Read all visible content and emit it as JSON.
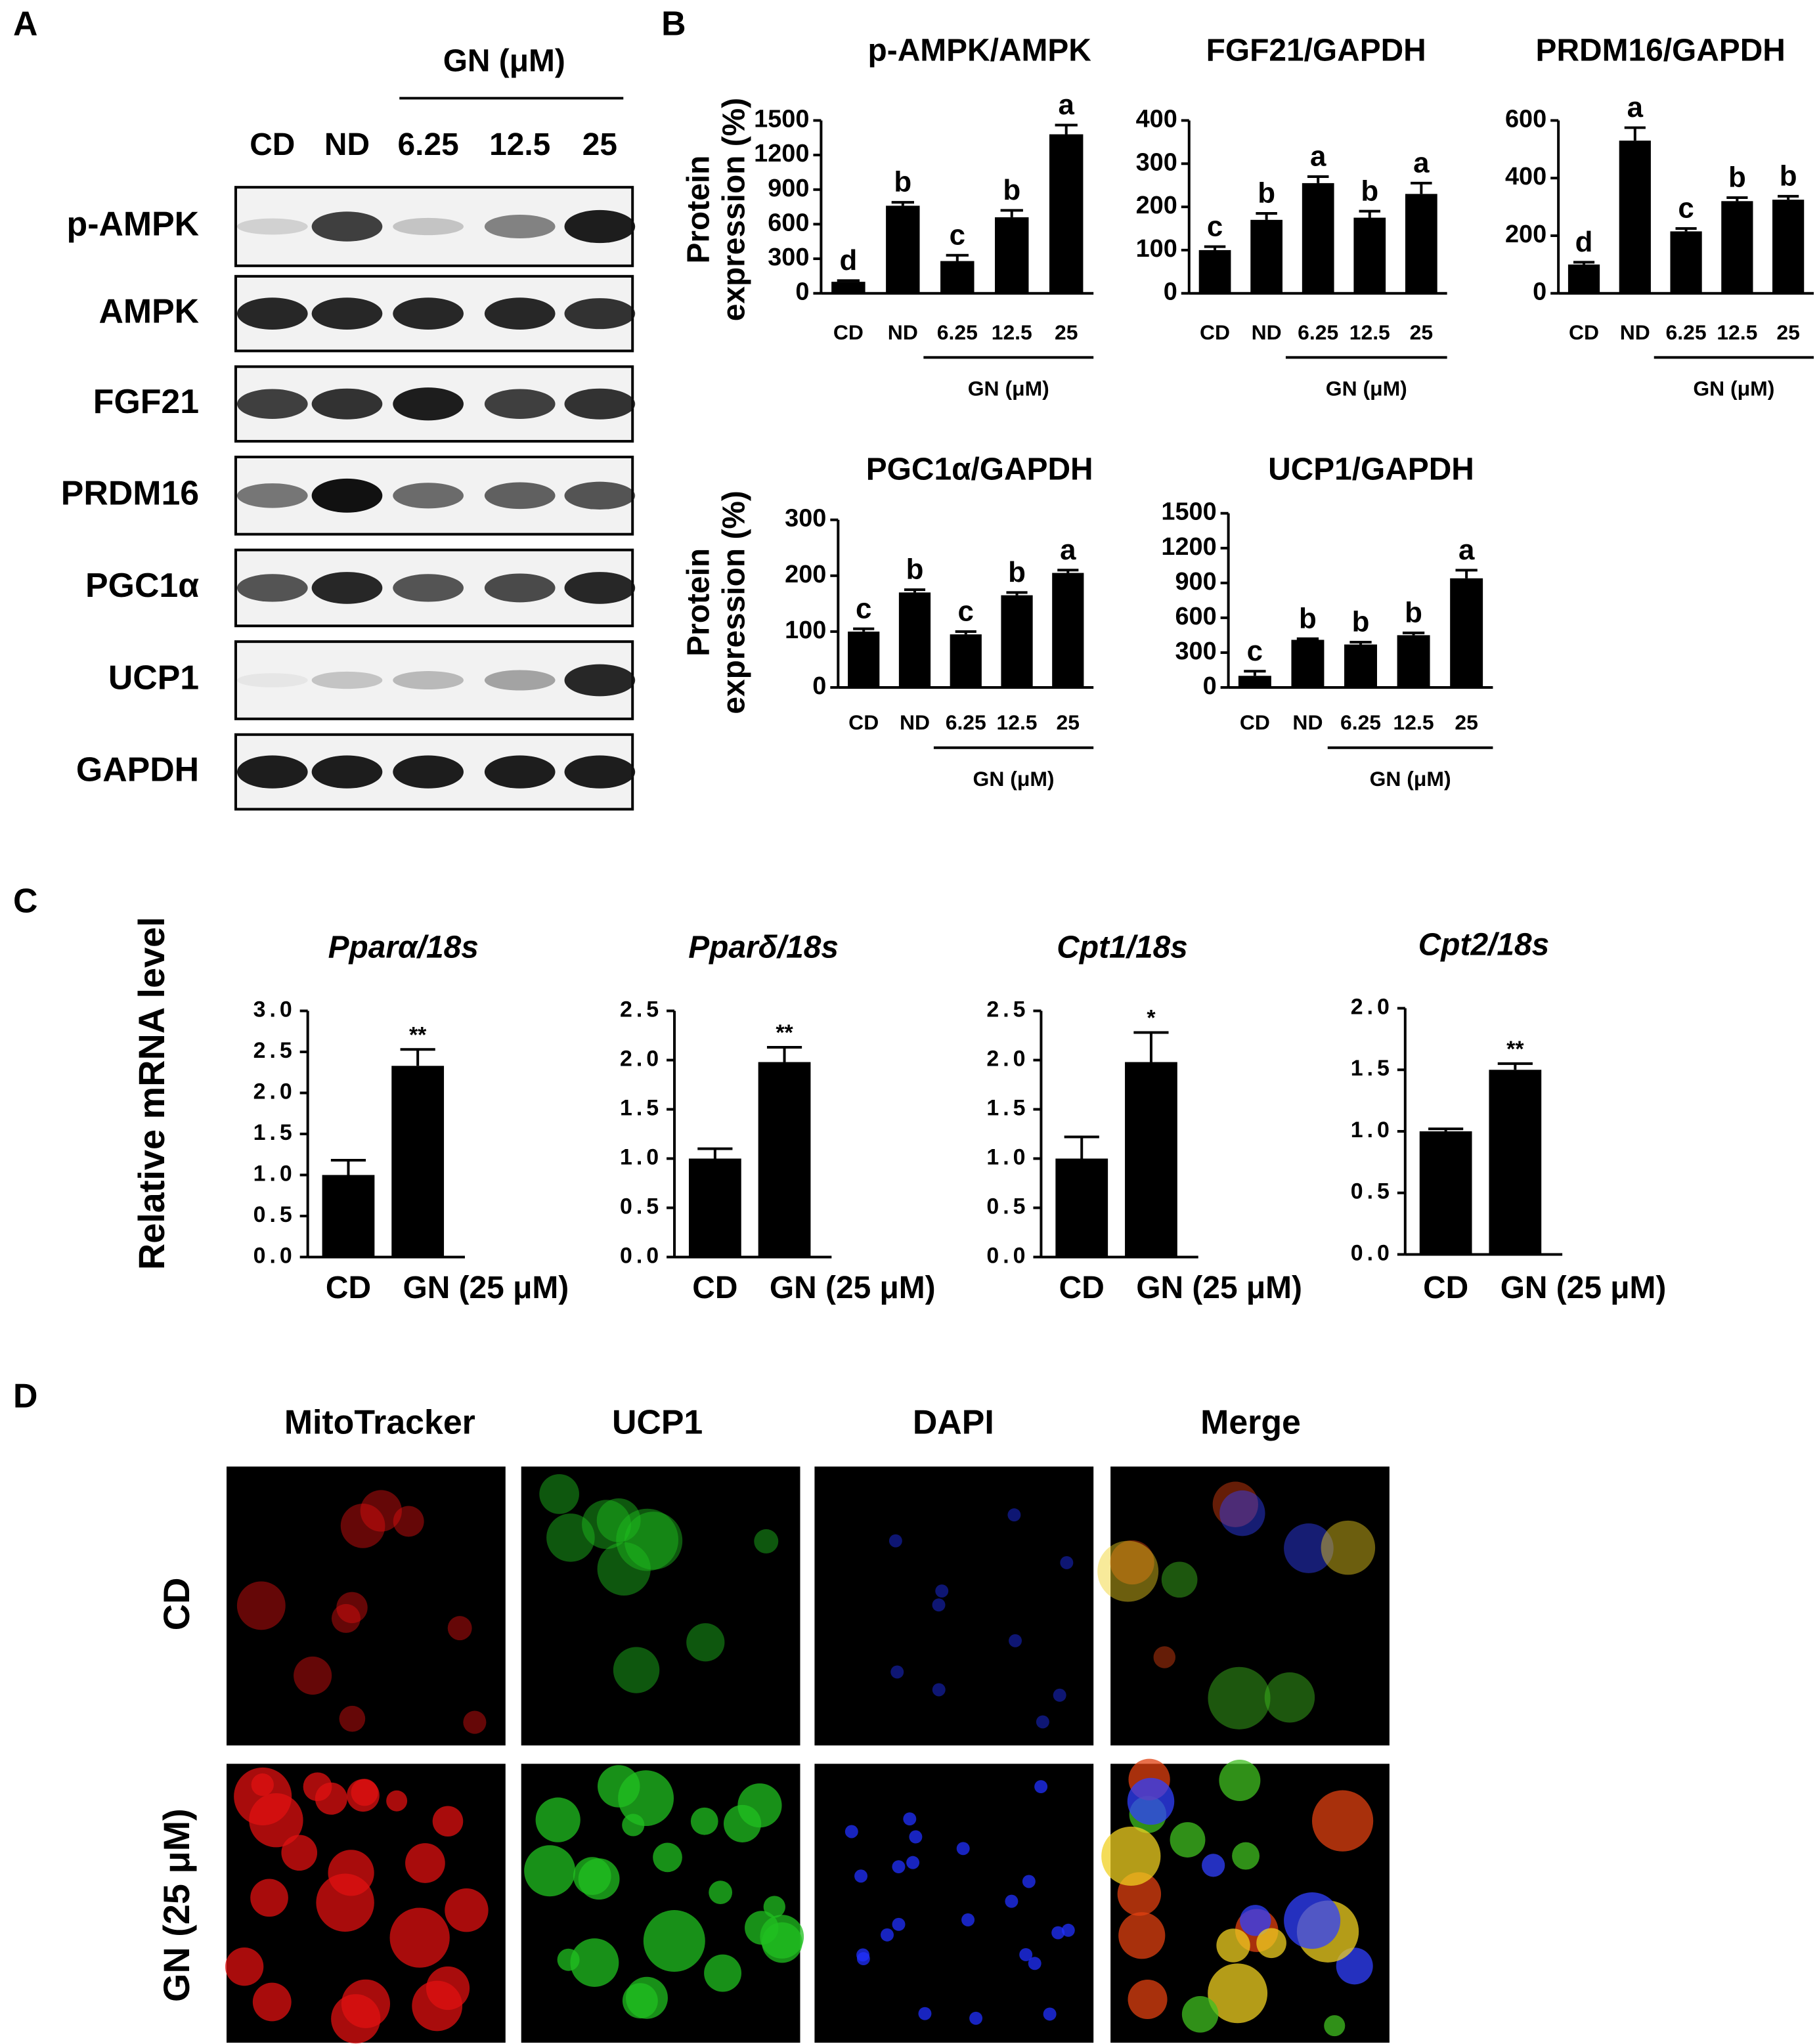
{
  "panel_labels": [
    "A",
    "B",
    "C",
    "D"
  ],
  "western_blot": {
    "group_label": "GN (μM)",
    "lanes": [
      "CD",
      "ND",
      "6.25",
      "12.5",
      "25"
    ],
    "proteins": [
      "p-AMPK",
      "AMPK",
      "FGF21",
      "PRDM16",
      "PGC1α",
      "UCP1",
      "GAPDH"
    ]
  },
  "chart_data": [
    {
      "type": "bar",
      "title": "p-AMPK/AMPK",
      "ylabel": [
        "Protein",
        "expression (%)"
      ],
      "categories": [
        "CD",
        "ND",
        "6.25",
        "12.5",
        "25"
      ],
      "group_label": "GN (μM)",
      "color": "#000000",
      "values": [
        100,
        760,
        280,
        660,
        1380
      ],
      "errors": [
        10,
        30,
        50,
        60,
        80
      ],
      "annotations": [
        "d",
        "b",
        "c",
        "b",
        "a"
      ],
      "ylim": [
        0,
        1500
      ],
      "yticks": [
        0,
        300,
        600,
        900,
        1200,
        1500
      ]
    },
    {
      "type": "bar",
      "title": "FGF21/GAPDH",
      "categories": [
        "CD",
        "ND",
        "6.25",
        "12.5",
        "25"
      ],
      "group_label": "GN (μM)",
      "color": "#000000",
      "values": [
        100,
        170,
        255,
        175,
        230
      ],
      "errors": [
        8,
        15,
        15,
        15,
        25
      ],
      "annotations": [
        "c",
        "b",
        "a",
        "b",
        "a"
      ],
      "ylim": [
        0,
        400
      ],
      "yticks": [
        0,
        100,
        200,
        300,
        400
      ]
    },
    {
      "type": "bar",
      "title": "PRDM16/GAPDH",
      "categories": [
        "CD",
        "ND",
        "6.25",
        "12.5",
        "25"
      ],
      "group_label": "GN (μM)",
      "color": "#000000",
      "values": [
        100,
        530,
        215,
        320,
        325
      ],
      "errors": [
        8,
        45,
        10,
        12,
        12
      ],
      "annotations": [
        "d",
        "a",
        "c",
        "b",
        "b"
      ],
      "ylim": [
        0,
        600
      ],
      "yticks": [
        0,
        200,
        400,
        600
      ]
    },
    {
      "type": "bar",
      "title": "PGC1α/GAPDH",
      "ylabel": [
        "Protein",
        "expression (%)"
      ],
      "categories": [
        "CD",
        "ND",
        "6.25",
        "12.5",
        "25"
      ],
      "group_label": "GN (μM)",
      "color": "#000000",
      "values": [
        100,
        170,
        95,
        165,
        205
      ],
      "errors": [
        5,
        5,
        5,
        5,
        5
      ],
      "annotations": [
        "c",
        "b",
        "c",
        "b",
        "a"
      ],
      "ylim": [
        0,
        300
      ],
      "yticks": [
        0,
        100,
        200,
        300
      ]
    },
    {
      "type": "bar",
      "title": "UCP1/GAPDH",
      "categories": [
        "CD",
        "ND",
        "6.25",
        "12.5",
        "25"
      ],
      "group_label": "GN (μM)",
      "color": "#000000",
      "values": [
        100,
        410,
        370,
        450,
        940
      ],
      "errors": [
        40,
        10,
        20,
        20,
        70
      ],
      "annotations": [
        "c",
        "b",
        "b",
        "b",
        "a"
      ],
      "ylim": [
        0,
        1500
      ],
      "yticks": [
        0,
        300,
        600,
        900,
        1200,
        1500
      ]
    },
    {
      "type": "bar",
      "title": "Pparα/18s",
      "ylabel": "Relative mRNA level",
      "categories": [
        "CD",
        "GN (25 μM)"
      ],
      "color": "#000000",
      "values": [
        1.0,
        2.33
      ],
      "errors": [
        0.18,
        0.2
      ],
      "annotations": [
        null,
        "**"
      ],
      "ylim": [
        0,
        3
      ],
      "yticks": [
        {
          "value": 0,
          "label": "0.0"
        },
        0.5,
        {
          "value": 1,
          "label": "1.0"
        },
        1.5,
        {
          "value": 2,
          "label": "2.0"
        },
        2.5,
        {
          "value": 3,
          "label": "3.0"
        }
      ]
    },
    {
      "type": "bar",
      "title": "Pparδ/18s",
      "categories": [
        "CD",
        "GN (25 μM)"
      ],
      "color": "#000000",
      "values": [
        1.0,
        1.98
      ],
      "errors": [
        0.1,
        0.15
      ],
      "annotations": [
        null,
        "**"
      ],
      "ylim": [
        0,
        2.5
      ],
      "yticks": [
        {
          "value": 0,
          "label": "0.0"
        },
        0.5,
        {
          "value": 1,
          "label": "1.0"
        },
        1.5,
        {
          "value": 2,
          "label": "2.0"
        },
        2.5
      ]
    },
    {
      "type": "bar",
      "title": "Cpt1/18s",
      "categories": [
        "CD",
        "GN (25 μM)"
      ],
      "color": "#000000",
      "values": [
        1.0,
        1.98
      ],
      "errors": [
        0.22,
        0.3
      ],
      "annotations": [
        null,
        "*"
      ],
      "ylim": [
        0,
        2.5
      ],
      "yticks": [
        {
          "value": 0,
          "label": "0.0"
        },
        0.5,
        {
          "value": 1,
          "label": "1.0"
        },
        1.5,
        {
          "value": 2,
          "label": "2.0"
        },
        2.5
      ]
    },
    {
      "type": "bar",
      "title": "Cpt2/18s",
      "categories": [
        "CD",
        "GN (25 μM)"
      ],
      "color": "#000000",
      "values": [
        1.0,
        1.5
      ],
      "errors": [
        0.02,
        0.05
      ],
      "annotations": [
        null,
        "**"
      ],
      "ylim": [
        0,
        2
      ],
      "yticks": [
        {
          "value": 0,
          "label": "0.0"
        },
        0.5,
        {
          "value": 1,
          "label": "1.0"
        },
        1.5,
        {
          "value": 2,
          "label": "2.0"
        }
      ]
    }
  ],
  "immunofluorescence": {
    "columns": [
      "MitoTracker",
      "UCP1",
      "DAPI",
      "Merge"
    ],
    "rows": [
      "CD",
      "GN (25 μM)"
    ]
  }
}
